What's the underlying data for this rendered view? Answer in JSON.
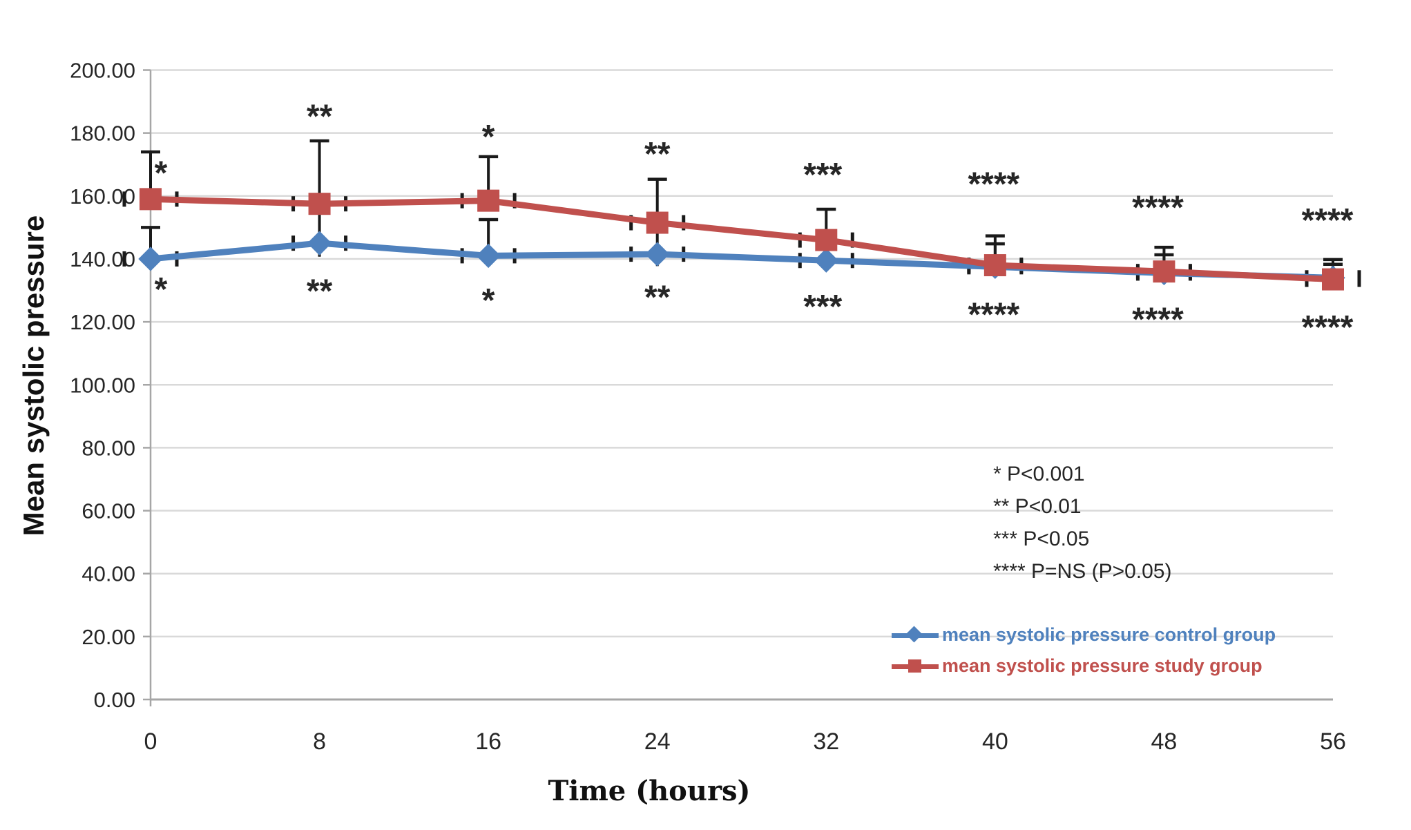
{
  "chart_data": {
    "type": "line",
    "title": "",
    "xlabel": "Time (hours)",
    "ylabel": "Mean systolic pressure",
    "grid": true,
    "legend_position": "bottom-right",
    "xlim_categories": [
      0,
      56
    ],
    "ylim": [
      0,
      200
    ],
    "y_tick_step": 20,
    "y_tick_labels": [
      "0.00",
      "20.00",
      "40.00",
      "60.00",
      "80.00",
      "100.00",
      "120.00",
      "140.00",
      "160.00",
      "180.00",
      "200.00"
    ],
    "categories": [
      0,
      8,
      16,
      24,
      32,
      40,
      48,
      56
    ],
    "x_tick_labels": [
      "0",
      "8",
      "16",
      "24",
      "32",
      "40",
      "48",
      "56"
    ],
    "series": [
      {
        "name": "mean systolic pressure control group",
        "color": "#4F81BD",
        "marker": "diamond",
        "values": [
          140,
          145,
          141,
          141.5,
          139.5,
          137.5,
          135.5,
          134
        ],
        "err_up": [
          10,
          0,
          11.5,
          0,
          0,
          7.3,
          5.8,
          4.3
        ],
        "err_down": [
          0,
          0,
          0,
          0,
          0,
          0,
          0,
          0
        ]
      },
      {
        "name": "mean systolic pressure study group",
        "color": "#C0504D",
        "marker": "square",
        "values": [
          159,
          157.5,
          158.5,
          151.5,
          146,
          138,
          136,
          133.5
        ],
        "err_up": [
          15,
          20,
          14,
          13.8,
          9.8,
          9.3,
          7.7,
          6.3
        ],
        "err_down": [
          0,
          16.8,
          0,
          13.8,
          7,
          0,
          0,
          0
        ]
      }
    ],
    "significance": [
      {
        "label": "*",
        "above_y": 169.5,
        "below_y": 132.5,
        "dx": 15
      },
      {
        "label": "**",
        "above_y": 187.5,
        "below_y": 132.0,
        "dx": 0
      },
      {
        "label": "*",
        "above_y": 181.0,
        "below_y": 129.0,
        "dx": 0
      },
      {
        "label": "**",
        "above_y": 175.5,
        "below_y": 130.0,
        "dx": 0
      },
      {
        "label": "***",
        "above_y": 169.0,
        "below_y": 127.0,
        "dx": -5
      },
      {
        "label": "****",
        "above_y": 166.0,
        "below_y": 124.5,
        "dx": -2
      },
      {
        "label": "****",
        "above_y": 158.5,
        "below_y": 123.0,
        "dx": -9
      },
      {
        "label": "****",
        "above_y": 154.5,
        "below_y": 120.5,
        "dx": -8
      }
    ]
  },
  "annotations": {
    "lines": [
      "* P<0.001",
      "** P<0.01",
      "*** P<0.05",
      "**** P=NS (P>0.05)"
    ]
  },
  "colors": {
    "control": "#4F81BD",
    "study": "#C0504D",
    "gridline": "#D9D9D9",
    "axis": "#A6A6A6",
    "error_bar": "#1A1A1A",
    "tick_text": "#262626"
  }
}
